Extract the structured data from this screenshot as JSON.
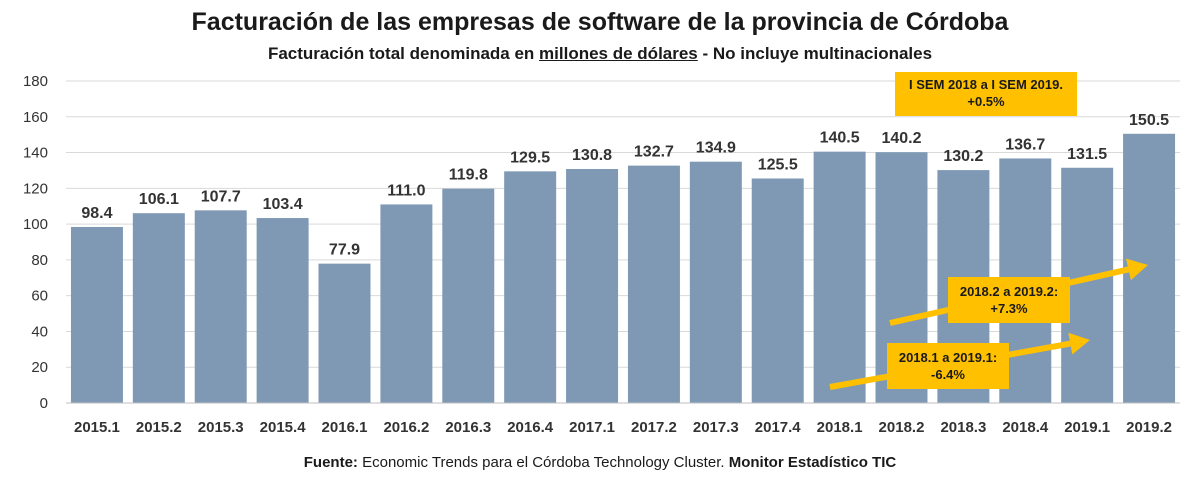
{
  "title": "Facturación de las empresas de software de la provincia de Córdoba",
  "subtitle": {
    "pre": "Facturación total denominada en ",
    "underlined": "millones de dólares",
    "post": " - No incluye multinacionales"
  },
  "source": {
    "label": "Fuente:",
    "text": " Economic Trends para el Córdoba Technology Cluster. ",
    "bold_tail": "Monitor Estadístico TIC"
  },
  "annotations": {
    "sem": {
      "line1": "I SEM 2018 a I SEM 2019.",
      "line2": "+0.5%"
    },
    "s2": {
      "line1": "2018.2 a 2019.2:",
      "line2": "+7.3%"
    },
    "s1": {
      "line1": "2018.1 a 2019.1:",
      "line2": "-6.4%"
    }
  },
  "colors": {
    "bar": "#7f99b5",
    "grid": "#d9d9d9",
    "annotation": "#ffc000",
    "arrow": "#ffc000"
  },
  "chart_data": {
    "type": "bar",
    "title": "Facturación de las empresas de software de la provincia de Córdoba",
    "categories": [
      "2015.1",
      "2015.2",
      "2015.3",
      "2015.4",
      "2016.1",
      "2016.2",
      "2016.3",
      "2016.4",
      "2017.1",
      "2017.2",
      "2017.3",
      "2017.4",
      "2018.1",
      "2018.2",
      "2018.3",
      "2018.4",
      "2019.1",
      "2019.2"
    ],
    "values": [
      98.4,
      106.1,
      107.7,
      103.4,
      77.9,
      111.0,
      119.8,
      129.5,
      130.8,
      132.7,
      134.9,
      125.5,
      140.5,
      140.2,
      130.2,
      136.7,
      131.5,
      150.5
    ],
    "ylim": [
      0,
      180
    ],
    "yticks": [
      0,
      20,
      40,
      60,
      80,
      100,
      120,
      140,
      160,
      180
    ],
    "grid": true,
    "legend": "none"
  }
}
